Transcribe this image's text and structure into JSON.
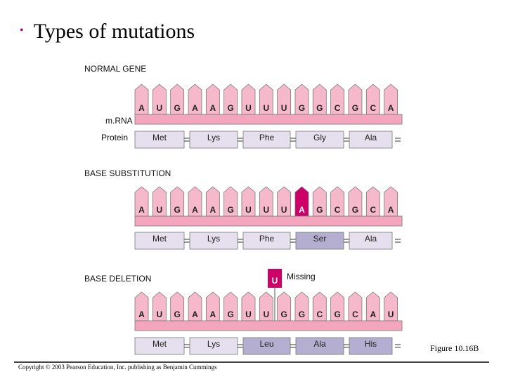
{
  "title": "Types of mutations",
  "colors": {
    "mrna_strip": "#f3a6bd",
    "nucleotide": "#f6b9cc",
    "highlight": "#cc0066",
    "protein_box": "#e6e0ee",
    "protein_box_highlight": "#b4aed0",
    "outline": "#777777"
  },
  "normal": {
    "heading": "NORMAL GENE",
    "mrna_label": "m.RNA",
    "protein_label": "Protein",
    "bases": [
      "A",
      "U",
      "G",
      "A",
      "A",
      "G",
      "U",
      "U",
      "U",
      "G",
      "G",
      "C",
      "G",
      "C",
      "A"
    ],
    "codons": [
      "Met",
      "Lys",
      "Phe",
      "Gly",
      "Ala"
    ],
    "highlight_codons": []
  },
  "substitution": {
    "heading": "BASE SUBSTITUTION",
    "bases": [
      "A",
      "U",
      "G",
      "A",
      "A",
      "G",
      "U",
      "U",
      "U",
      "A",
      "G",
      "C",
      "G",
      "C",
      "A"
    ],
    "highlight_base_index": 9,
    "codons": [
      "Met",
      "Lys",
      "Phe",
      "Ser",
      "Ala"
    ],
    "highlight_codons": [
      3
    ]
  },
  "deletion": {
    "heading": "BASE DELETION",
    "missing_base": "U",
    "missing_label": "Missing",
    "bases": [
      "A",
      "U",
      "G",
      "A",
      "A",
      "G",
      "U",
      "U",
      "G",
      "G",
      "C",
      "G",
      "C",
      "A",
      "U"
    ],
    "codons": [
      "Met",
      "Lys",
      "Leu",
      "Ala",
      "His"
    ],
    "highlight_codons": [
      2,
      3,
      4
    ]
  },
  "figure_label": "Figure 10.16B",
  "copyright": "Copyright © 2003 Pearson Education, Inc. publishing as Benjamin Cummings"
}
